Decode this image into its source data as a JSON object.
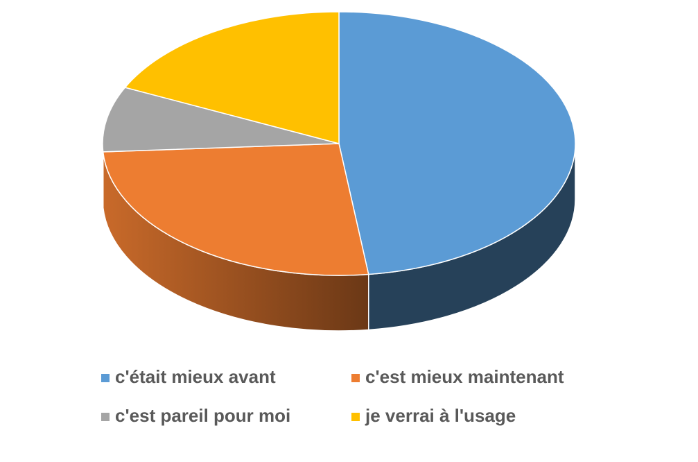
{
  "chart_data": {
    "type": "pie",
    "categories": [
      "c'était mieux avant",
      "c'est mieux maintenant",
      "c'est pareil pour moi",
      "je verrai à l'usage"
    ],
    "values": [
      48,
      26,
      8,
      18
    ],
    "colors": [
      "#5b9bd5",
      "#ed7d31",
      "#a5a5a5",
      "#ffc000"
    ]
  }
}
